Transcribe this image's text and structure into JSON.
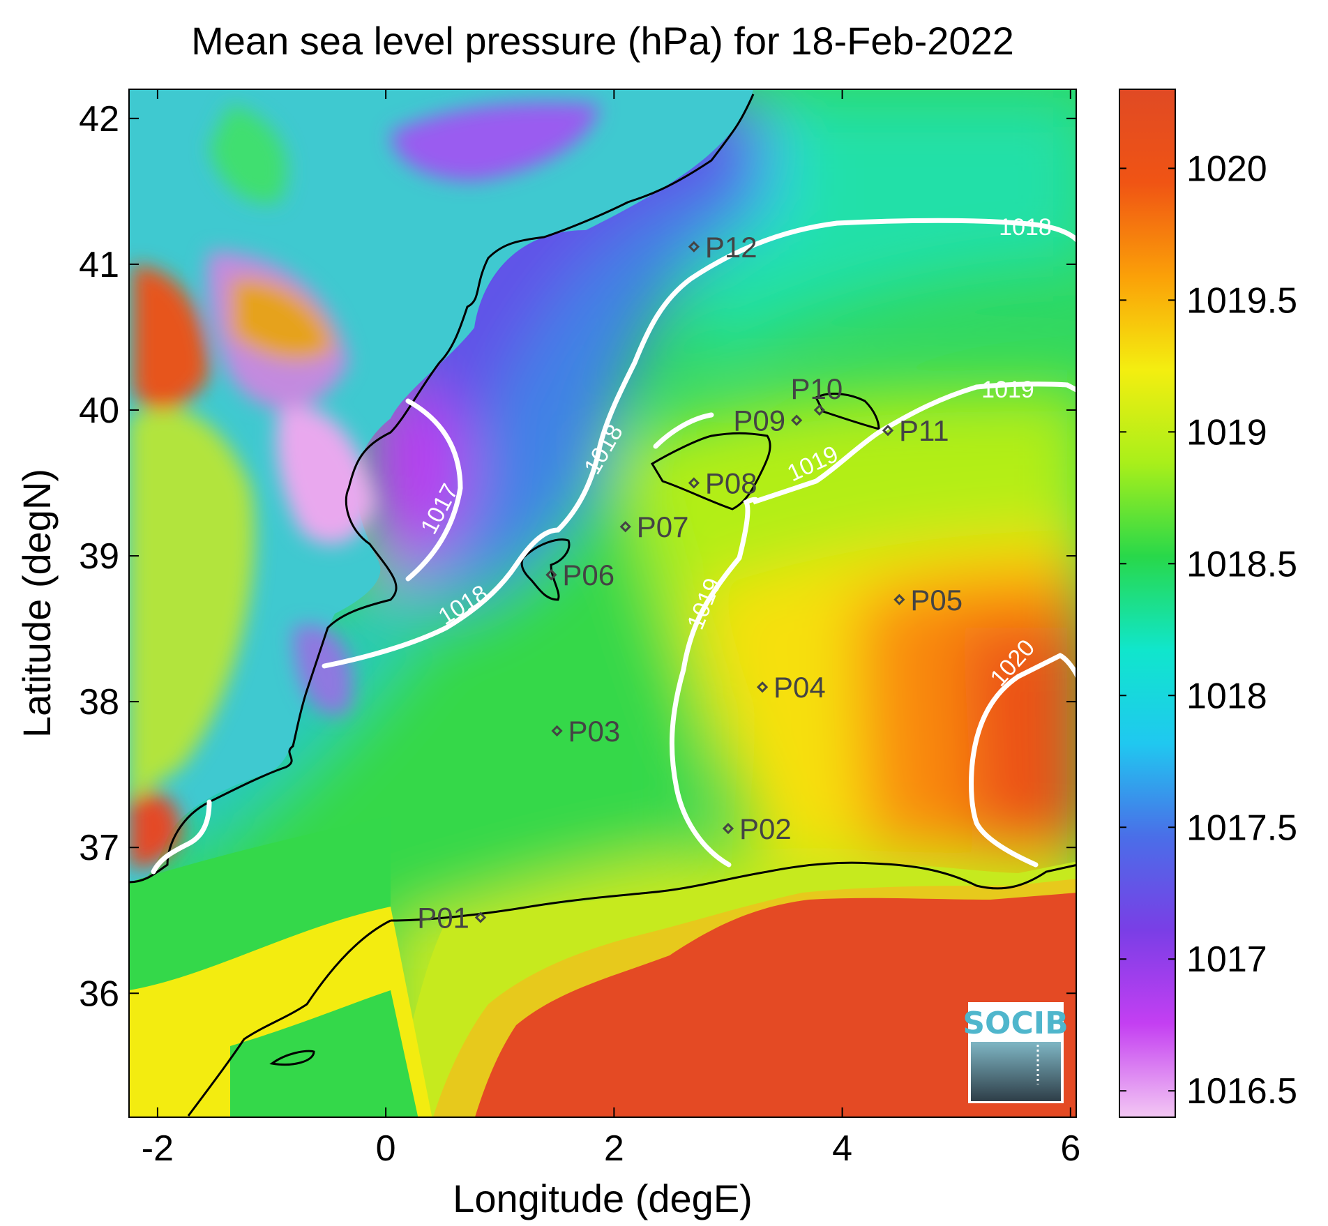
{
  "chart_data": {
    "type": "heatmap",
    "title": "Mean sea level pressure (hPa) for 18-Feb-2022",
    "xlabel": "Longitude (degE)",
    "ylabel": "Latitude (degN)",
    "xlim": [
      -2.25,
      6.05
    ],
    "ylim": [
      35.15,
      42.2
    ],
    "xticks": [
      -2,
      0,
      2,
      4,
      6
    ],
    "yticks": [
      36,
      37,
      38,
      39,
      40,
      41,
      42
    ],
    "colorbar": {
      "range": [
        1016.4,
        1020.3
      ],
      "ticks": [
        1016.5,
        1017,
        1017.5,
        1018,
        1018.5,
        1019,
        1019.5,
        1020
      ],
      "colormap": [
        "#f3c8f3",
        "#c43ff2",
        "#7a3ee6",
        "#4a6ee8",
        "#20c8f0",
        "#10e6cc",
        "#28d84a",
        "#a9ef1a",
        "#f4ee10",
        "#fba008",
        "#f05414",
        "#e04a24"
      ]
    },
    "contours": [
      {
        "level": 1017,
        "label": "1017"
      },
      {
        "level": 1018,
        "label": "1018"
      },
      {
        "level": 1019,
        "label": "1019"
      },
      {
        "level": 1020,
        "label": "1020"
      }
    ],
    "contour_color": "#ffffff",
    "coastline_color": "#000000",
    "points": [
      {
        "name": "P01",
        "lon": 0.83,
        "lat": 36.52,
        "label_side": "left"
      },
      {
        "name": "P02",
        "lon": 3.0,
        "lat": 37.13,
        "label_side": "right"
      },
      {
        "name": "P03",
        "lon": 1.5,
        "lat": 37.8,
        "label_side": "right"
      },
      {
        "name": "P04",
        "lon": 3.3,
        "lat": 38.1,
        "label_side": "right"
      },
      {
        "name": "P05",
        "lon": 4.5,
        "lat": 38.7,
        "label_side": "right"
      },
      {
        "name": "P06",
        "lon": 1.45,
        "lat": 38.87,
        "label_side": "right"
      },
      {
        "name": "P07",
        "lon": 2.1,
        "lat": 39.2,
        "label_side": "right"
      },
      {
        "name": "P08",
        "lon": 2.7,
        "lat": 39.5,
        "label_side": "right"
      },
      {
        "name": "P09",
        "lon": 3.6,
        "lat": 39.93,
        "label_side": "left"
      },
      {
        "name": "P10",
        "lon": 3.8,
        "lat": 40.0,
        "label_side": "above"
      },
      {
        "name": "P11",
        "lon": 4.4,
        "lat": 39.86,
        "label_side": "right"
      },
      {
        "name": "P12",
        "lon": 2.7,
        "lat": 41.12,
        "label_side": "right"
      }
    ],
    "grid": false
  },
  "logo": {
    "text": "SOCIB"
  }
}
